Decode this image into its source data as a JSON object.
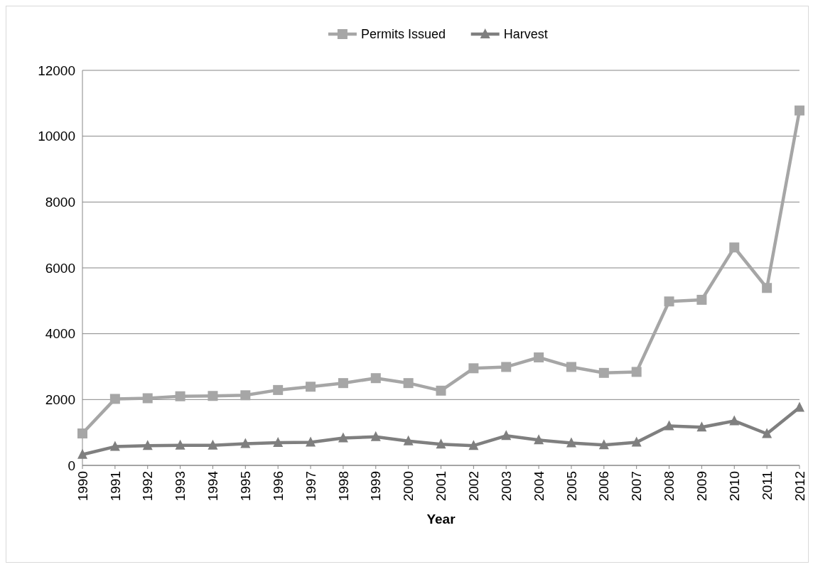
{
  "chart_data": {
    "type": "line",
    "xlabel": "Year",
    "categories": [
      "1990",
      "1991",
      "1992",
      "1993",
      "1994",
      "1995",
      "1996",
      "1997",
      "1998",
      "1999",
      "2000",
      "2001",
      "2002",
      "2003",
      "2004",
      "2005",
      "2006",
      "2007",
      "2008",
      "2009",
      "2010",
      "2011",
      "2012"
    ],
    "series": [
      {
        "name": "Permits Issued",
        "color": "#a6a6a6",
        "marker": "square",
        "values": [
          970,
          2020,
          2040,
          2100,
          2110,
          2130,
          2290,
          2390,
          2500,
          2650,
          2500,
          2270,
          2950,
          2990,
          3280,
          2990,
          2810,
          2840,
          4980,
          5030,
          6620,
          5390,
          10780
        ]
      },
      {
        "name": "Harvest",
        "color": "#7f7f7f",
        "marker": "triangle",
        "values": [
          330,
          570,
          600,
          610,
          610,
          660,
          690,
          700,
          830,
          870,
          740,
          640,
          600,
          900,
          770,
          680,
          620,
          700,
          1200,
          1160,
          1350,
          960,
          1760
        ]
      }
    ],
    "ylim": [
      0,
      12000
    ],
    "yticks": [
      0,
      2000,
      4000,
      6000,
      8000,
      10000,
      12000
    ],
    "grid": "y",
    "legend": "top",
    "line_style": "solid"
  }
}
